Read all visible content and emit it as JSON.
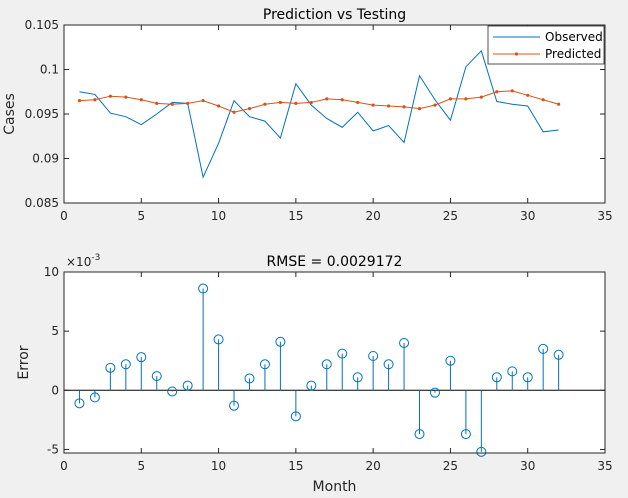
{
  "colors": {
    "background": "#f0f0f0",
    "axes_bg": "#ffffff",
    "observed": "#0072bd",
    "predicted": "#d95319",
    "stem": "#0072bd",
    "axis": "#262626"
  },
  "chart_data": [
    {
      "type": "line",
      "title": "Prediction vs Testing",
      "xlabel": "",
      "ylabel": "Cases",
      "xlim": [
        0,
        35
      ],
      "ylim": [
        0.085,
        0.105
      ],
      "xticks": [
        "0",
        "5",
        "10",
        "15",
        "20",
        "25",
        "30",
        "35"
      ],
      "yticks": [
        "0.085",
        "0.09",
        "0.095",
        "0.1",
        "0.105"
      ],
      "legend_position": "top-right",
      "x": [
        1,
        2,
        3,
        4,
        5,
        6,
        7,
        8,
        9,
        10,
        11,
        12,
        13,
        14,
        15,
        16,
        17,
        18,
        19,
        20,
        21,
        22,
        23,
        24,
        25,
        26,
        27,
        28,
        29,
        30,
        31,
        32
      ],
      "series": [
        {
          "name": "Observed",
          "color": "#0072bd",
          "marker": "none",
          "values": [
            0.0975,
            0.0972,
            0.0951,
            0.0947,
            0.0938,
            0.095,
            0.0963,
            0.0962,
            0.0879,
            0.0917,
            0.0965,
            0.0947,
            0.0942,
            0.0923,
            0.0984,
            0.096,
            0.0945,
            0.0935,
            0.0952,
            0.0931,
            0.0937,
            0.0918,
            0.0993,
            0.0966,
            0.0943,
            0.1003,
            0.1021,
            0.0964,
            0.0961,
            0.0959,
            0.093,
            0.0932
          ]
        },
        {
          "name": "Predicted",
          "color": "#d95319",
          "marker": "dot",
          "values": [
            0.0965,
            0.0966,
            0.097,
            0.0969,
            0.0966,
            0.0962,
            0.0961,
            0.0962,
            0.0965,
            0.0959,
            0.0952,
            0.0956,
            0.0961,
            0.0963,
            0.0962,
            0.0963,
            0.0967,
            0.0966,
            0.0963,
            0.096,
            0.0959,
            0.0958,
            0.0956,
            0.096,
            0.0967,
            0.0967,
            0.0969,
            0.0975,
            0.0976,
            0.0971,
            0.0966,
            0.0961
          ]
        }
      ]
    },
    {
      "type": "stem",
      "title": "RMSE = 0.0029172",
      "xlabel": "Month",
      "ylabel": "Error",
      "y_exponent_label": "×10",
      "y_exponent_power": "-3",
      "xlim": [
        0,
        35
      ],
      "ylim": [
        -5.3,
        10
      ],
      "xticks": [
        "0",
        "5",
        "10",
        "15",
        "20",
        "25",
        "30",
        "35"
      ],
      "yticks": [
        "-5",
        "0",
        "5",
        "10"
      ],
      "x": [
        1,
        2,
        3,
        4,
        5,
        6,
        7,
        8,
        9,
        10,
        11,
        12,
        13,
        14,
        15,
        16,
        17,
        18,
        19,
        20,
        21,
        22,
        23,
        24,
        25,
        26,
        27,
        28,
        29,
        30,
        31,
        32
      ],
      "values": [
        -1.1,
        -0.6,
        1.9,
        2.2,
        2.8,
        1.2,
        -0.1,
        0.4,
        8.6,
        4.3,
        -1.3,
        1.0,
        2.2,
        4.1,
        -2.2,
        0.4,
        2.2,
        3.1,
        1.1,
        2.9,
        2.2,
        4.0,
        -3.7,
        -0.2,
        2.5,
        -3.7,
        -5.2,
        1.1,
        1.6,
        1.1,
        3.5,
        3.0
      ]
    }
  ]
}
